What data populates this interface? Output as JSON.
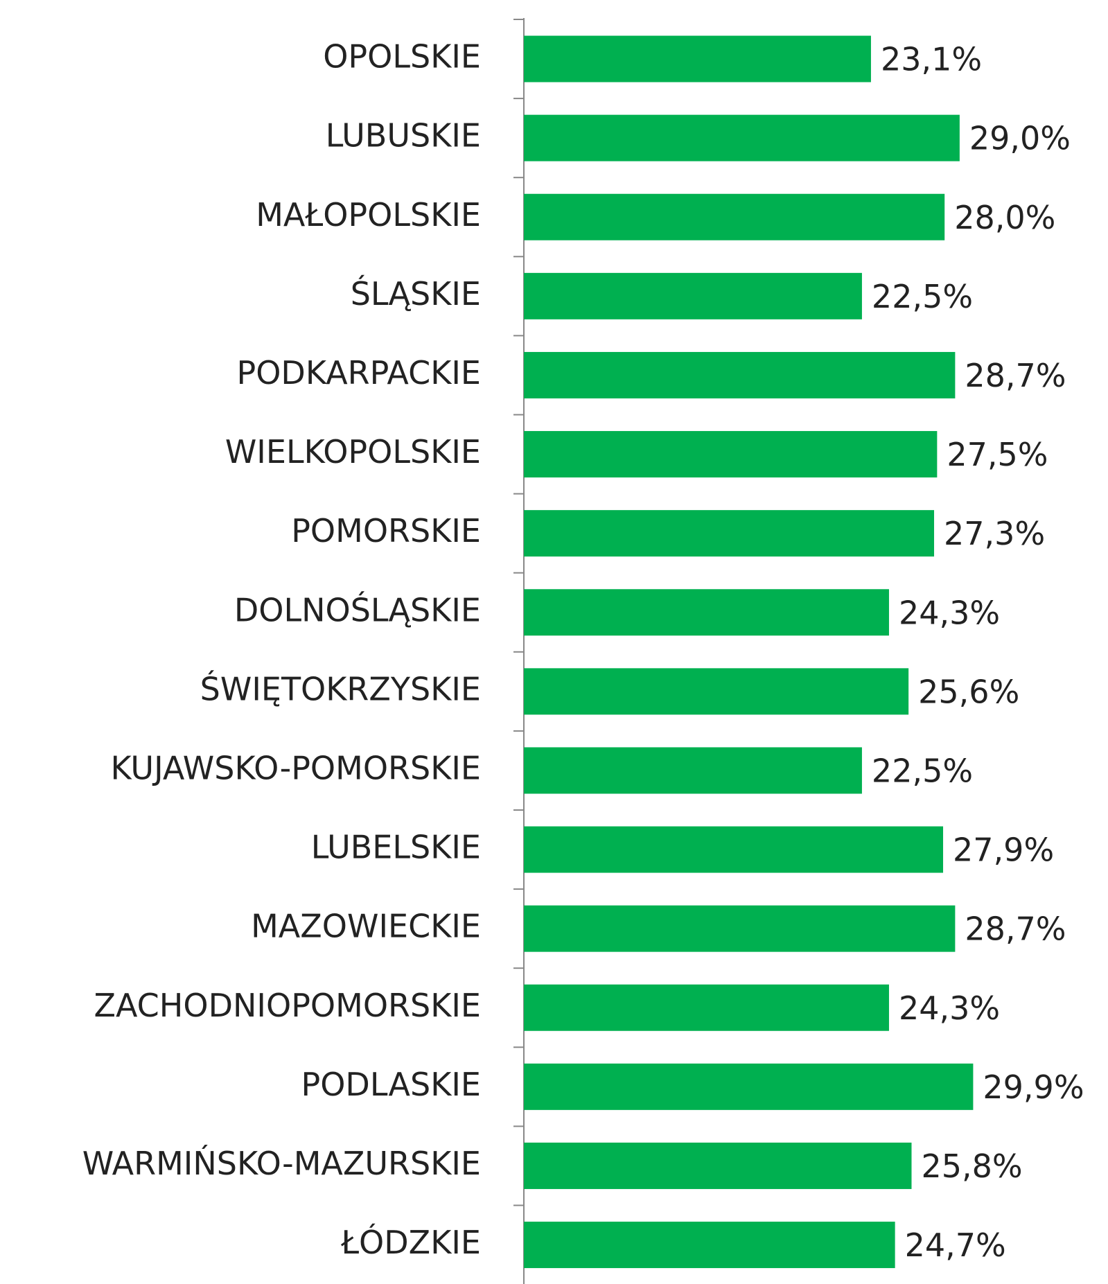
{
  "chart_data": {
    "type": "bar",
    "orientation": "horizontal",
    "categories": [
      "OPOLSKIE",
      "LUBUSKIE",
      "MAŁOPOLSKIE",
      "ŚLĄSKIE",
      "PODKARPACKIE",
      "WIELKOPOLSKIE",
      "POMORSKIE",
      "DOLNOŚLĄSKIE",
      "ŚWIĘTOKRZYSKIE",
      "KUJAWSKO-POMORSKIE",
      "LUBELSKIE",
      "MAZOWIECKIE",
      "ZACHODNIOPOMORSKIE",
      "PODLASKIE",
      "WARMIŃSKO-MAZURSKIE",
      "ŁÓDZKIE"
    ],
    "values": [
      23.1,
      29.0,
      28.0,
      22.5,
      28.7,
      27.5,
      27.3,
      24.3,
      25.6,
      22.5,
      27.9,
      28.7,
      24.3,
      29.9,
      25.8,
      24.7
    ],
    "value_labels": [
      "23,1%",
      "29,0%",
      "28,0%",
      "22,5%",
      "28,7%",
      "27,5%",
      "27,3%",
      "24,3%",
      "25,6%",
      "22,5%",
      "27,9%",
      "28,7%",
      "24,3%",
      "29,9%",
      "25,8%",
      "24,7%"
    ],
    "color": "#00b050",
    "xlim": [
      0,
      35
    ]
  }
}
